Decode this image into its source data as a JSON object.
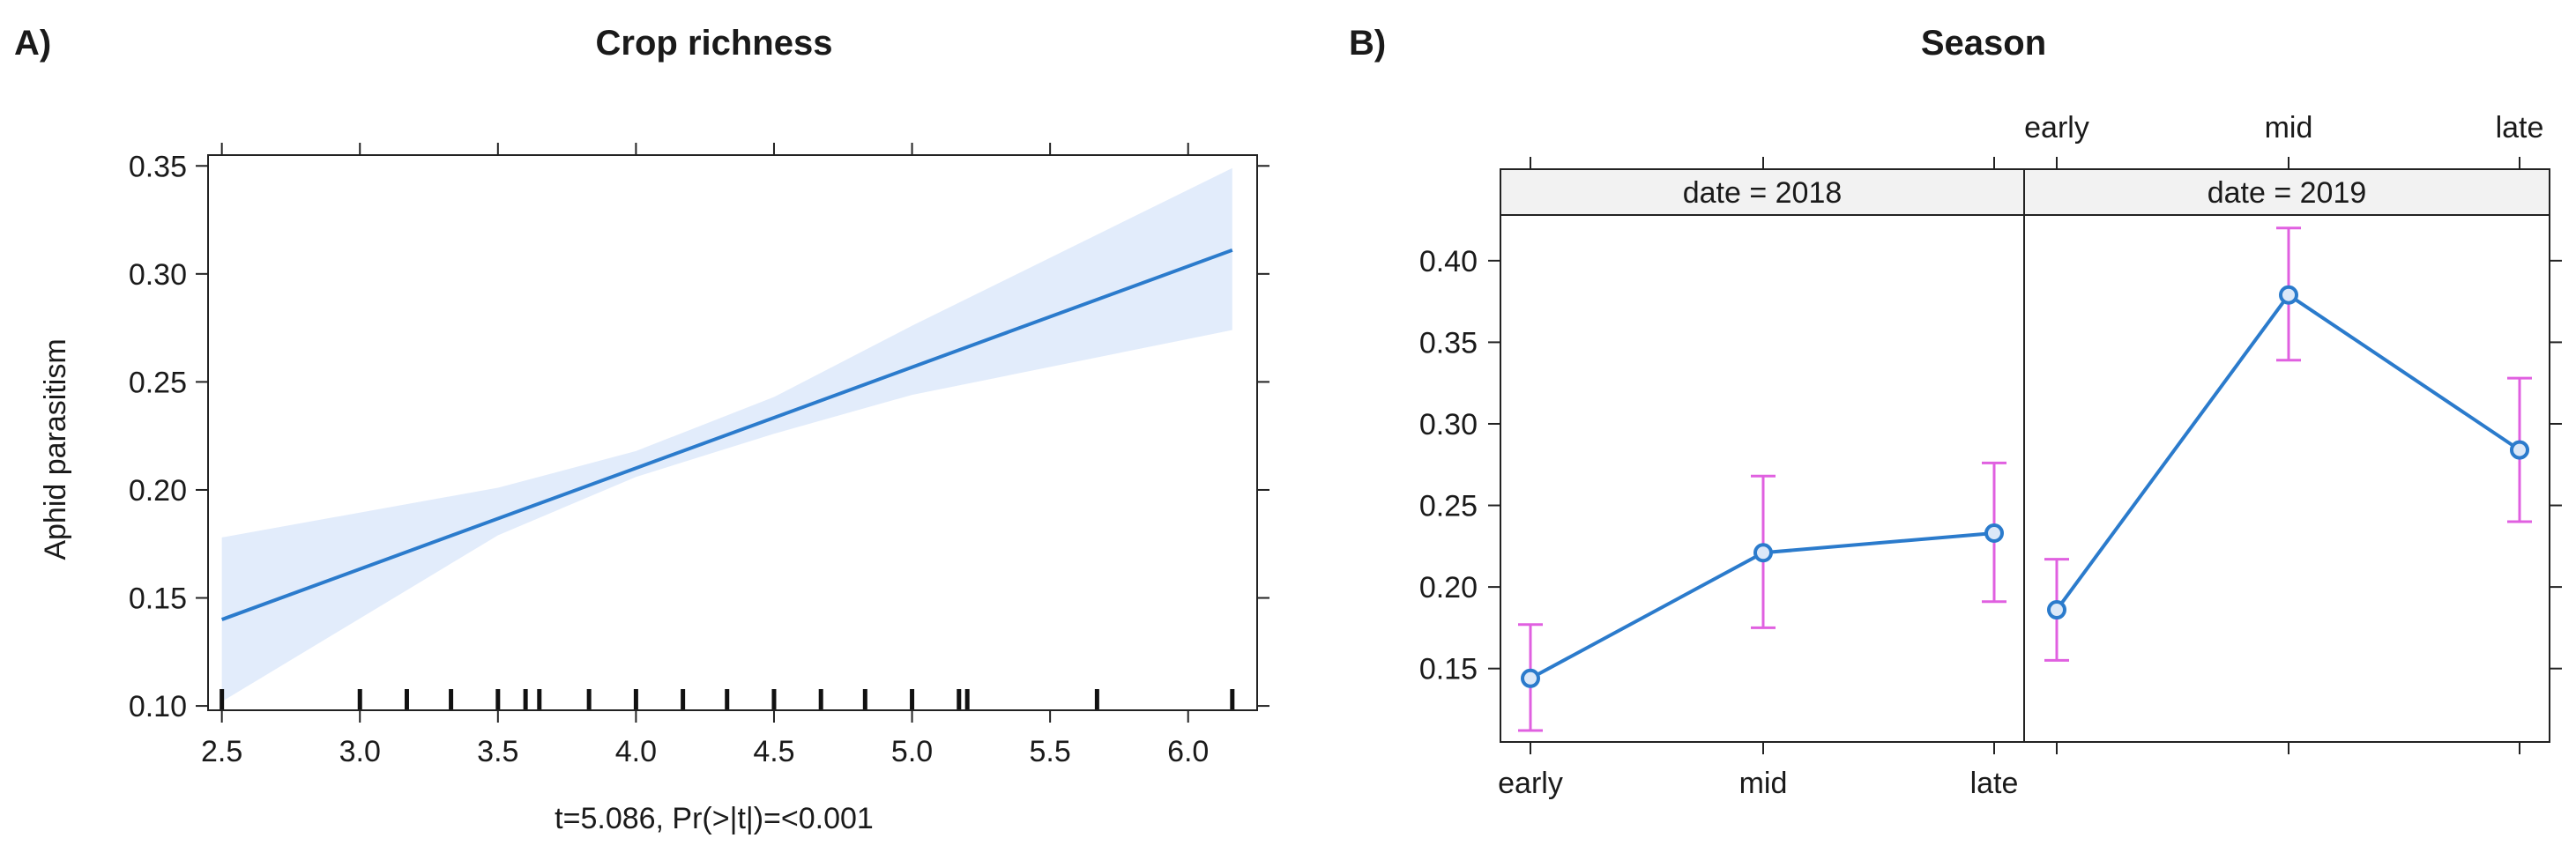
{
  "chart_data": [
    {
      "type": "line",
      "panel_label": "A)",
      "title": "Crop richness",
      "xlabel": "t=5.086, Pr(>|t|)=<0.001",
      "ylabel": "Aphid parasitism",
      "xlim": [
        2.45,
        6.25
      ],
      "ylim": [
        0.098,
        0.355
      ],
      "x_ticks": [
        "2.5",
        "3.0",
        "3.5",
        "4.0",
        "4.5",
        "5.0",
        "5.5",
        "6.0"
      ],
      "y_ticks": [
        "0.10",
        "0.15",
        "0.20",
        "0.25",
        "0.30",
        "0.35"
      ],
      "fit_line": {
        "x": [
          2.5,
          6.16
        ],
        "y": [
          0.14,
          0.311
        ]
      },
      "confidence_band": {
        "x": [
          2.5,
          3.5,
          4.0,
          4.5,
          5.0,
          6.16
        ],
        "upper": [
          0.178,
          0.201,
          0.218,
          0.243,
          0.276,
          0.349
        ],
        "lower": [
          0.102,
          0.179,
          0.206,
          0.226,
          0.244,
          0.274
        ]
      },
      "rug": [
        2.5,
        3.0,
        3.17,
        3.33,
        3.5,
        3.6,
        3.65,
        3.83,
        4.0,
        4.17,
        4.33,
        4.5,
        4.67,
        4.83,
        5.0,
        5.17,
        5.2,
        5.67,
        6.16
      ],
      "colors": {
        "line": "#2b7bcc",
        "band": "#e2ecfb",
        "rug": "#111111"
      }
    },
    {
      "type": "line",
      "panel_label": "B)",
      "title": "Season",
      "ylim": [
        0.105,
        0.428
      ],
      "y_ticks": [
        "0.15",
        "0.20",
        "0.25",
        "0.30",
        "0.35",
        "0.40"
      ],
      "categories": [
        "early",
        "mid",
        "late"
      ],
      "panels": [
        {
          "strip": "date = 2018",
          "values": [
            0.144,
            0.221,
            0.233
          ],
          "lower": [
            0.112,
            0.175,
            0.191
          ],
          "upper": [
            0.177,
            0.268,
            0.276
          ]
        },
        {
          "strip": "date = 2019",
          "values": [
            0.186,
            0.379,
            0.284
          ],
          "lower": [
            0.155,
            0.339,
            0.24
          ],
          "upper": [
            0.217,
            0.42,
            0.328
          ]
        }
      ],
      "colors": {
        "line": "#2b7bcc",
        "error_bar": "#e060e0",
        "strip_bg": "#f2f2f2"
      }
    }
  ]
}
